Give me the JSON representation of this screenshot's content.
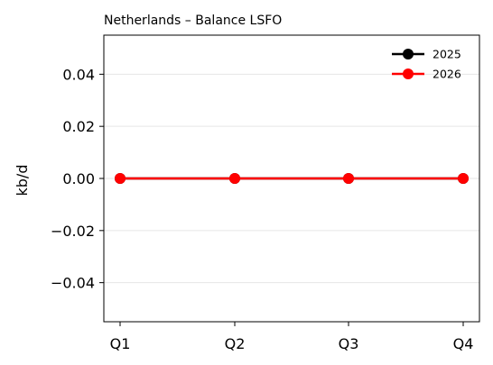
{
  "chart_data": {
    "type": "line",
    "title": "Netherlands – Balance LSFO",
    "xlabel": "",
    "ylabel": "kb/d",
    "categories": [
      "Q1",
      "Q2",
      "Q3",
      "Q4"
    ],
    "ylim": [
      -0.055,
      0.055
    ],
    "yticks": [
      -0.04,
      -0.02,
      0.0,
      0.02,
      0.04
    ],
    "ytick_labels": [
      "−0.04",
      "−0.02",
      "0.00",
      "0.02",
      "0.04"
    ],
    "grid": "horizontal",
    "legend_position": "top-right",
    "series": [
      {
        "name": "2025",
        "values": [
          0,
          0,
          0,
          0
        ],
        "color": "#000000"
      },
      {
        "name": "2026",
        "values": [
          0,
          0,
          0,
          0
        ],
        "color": "#ff0000"
      }
    ]
  }
}
